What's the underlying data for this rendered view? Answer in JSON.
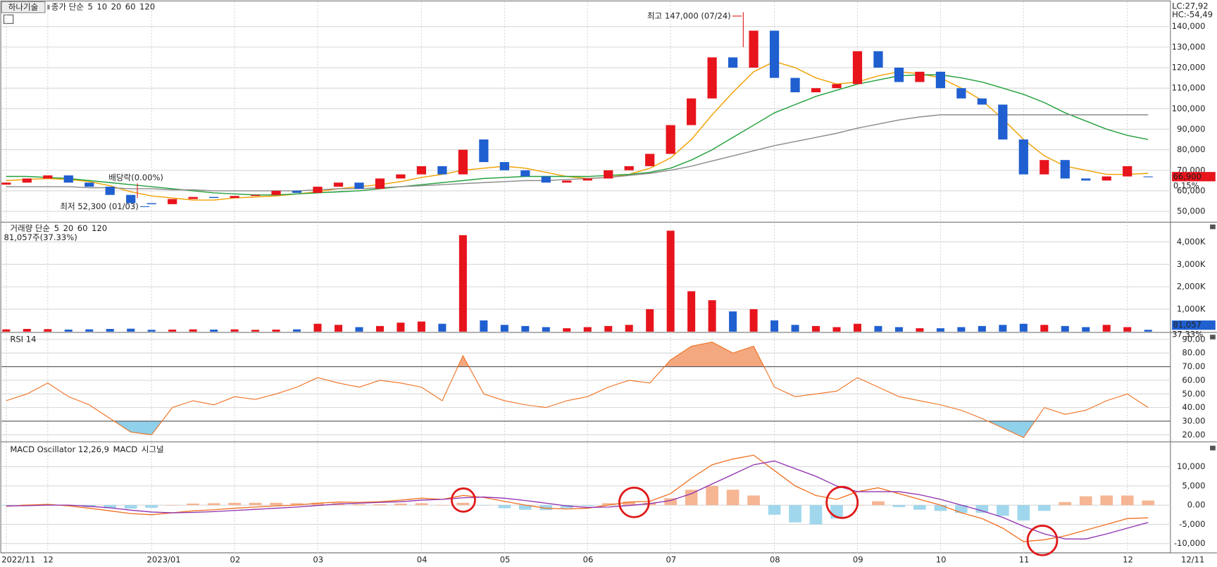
{
  "chart_data": [
    {
      "type": "candlestick",
      "title": "하나기술",
      "legend_prefix": "종가 단순",
      "ma_legend": [
        {
          "label": "5",
          "color": "#e040e0"
        },
        {
          "label": "10",
          "color": "#3050e0"
        }
      ],
      "categories": [
        "2022/11",
        null,
        "12",
        null,
        null,
        null,
        null,
        "2023/01",
        null,
        null,
        null,
        "02",
        null,
        null,
        null,
        "03",
        null,
        null,
        null,
        null,
        "04",
        null,
        null,
        null,
        "05",
        null,
        null,
        null,
        "06",
        null,
        null,
        null,
        "07",
        null,
        null,
        null,
        null,
        "08",
        null,
        null,
        null,
        "09",
        null,
        null,
        null,
        "10",
        null,
        null,
        null,
        "11",
        null,
        null,
        null,
        null,
        "12",
        null
      ],
      "end_label": "12/11",
      "open": [
        63000,
        64000,
        66000,
        67500,
        64000,
        62000,
        58000,
        54000,
        53500,
        56000,
        57000,
        56500,
        57500,
        58000,
        60000,
        59000,
        62000,
        64000,
        61000,
        66000,
        68000,
        72000,
        68000,
        85000,
        74000,
        70000,
        67000,
        64000,
        65000,
        66000,
        70000,
        72000,
        78000,
        92000,
        105000,
        125000,
        120000,
        138000,
        115000,
        108000,
        110000,
        112000,
        128000,
        120000,
        113000,
        118000,
        110000,
        105000,
        102000,
        85000,
        68000,
        75000,
        66000,
        65000,
        67000,
        67000
      ],
      "close": [
        64000,
        66000,
        67500,
        64000,
        62000,
        58000,
        54000,
        53500,
        56000,
        57000,
        56500,
        57500,
        58000,
        60000,
        59000,
        62000,
        64000,
        61000,
        66000,
        68000,
        72000,
        68000,
        80000,
        74000,
        70000,
        67000,
        64000,
        65000,
        66000,
        70000,
        72000,
        78000,
        92000,
        105000,
        125000,
        120000,
        138000,
        115000,
        108000,
        110000,
        112000,
        128000,
        120000,
        113000,
        118000,
        110000,
        105000,
        102000,
        85000,
        68000,
        75000,
        66000,
        65000,
        67000,
        72000,
        66900
      ],
      "up_color": "#e8141c",
      "down_color": "#1f5fd0",
      "series": [
        {
          "name": "20",
          "color": "#f0a000",
          "values": [
            65000,
            65500,
            66000,
            65500,
            64500,
            62500,
            59500,
            57500,
            56500,
            55500,
            55500,
            56500,
            57000,
            57500,
            58500,
            59500,
            61000,
            62000,
            63000,
            64500,
            66500,
            68000,
            70000,
            71000,
            72000,
            71000,
            69000,
            67000,
            66000,
            66500,
            68000,
            71000,
            76000,
            85000,
            97000,
            108000,
            118000,
            123000,
            120000,
            115000,
            112000,
            113000,
            116000,
            118000,
            117000,
            115000,
            110000,
            104000,
            95000,
            85000,
            77000,
            72000,
            70000,
            68000,
            68000,
            68500
          ]
        },
        {
          "name": "60",
          "color": "#22a03a",
          "values": [
            67000,
            67000,
            66500,
            66000,
            65000,
            64000,
            63000,
            62000,
            61000,
            60000,
            59000,
            58500,
            58000,
            58000,
            58500,
            59000,
            59500,
            60000,
            61000,
            62000,
            63000,
            64000,
            65000,
            66000,
            66500,
            67000,
            67000,
            67000,
            67000,
            67500,
            68000,
            69000,
            71000,
            75000,
            80000,
            86000,
            92000,
            98000,
            102000,
            106000,
            109000,
            112000,
            114000,
            116000,
            116500,
            116500,
            115000,
            113000,
            110000,
            107000,
            103000,
            98000,
            94000,
            90000,
            87000,
            85000
          ]
        },
        {
          "name": "120",
          "color": "#8c8c8c",
          "values": [
            62000,
            62000,
            62000,
            62000,
            61500,
            61500,
            61000,
            61000,
            60500,
            60500,
            60000,
            60000,
            60000,
            60000,
            60000,
            60500,
            61000,
            61000,
            61500,
            62000,
            62500,
            63000,
            63500,
            64000,
            64500,
            65000,
            65000,
            65500,
            66000,
            66500,
            67500,
            68500,
            70000,
            72000,
            74500,
            77000,
            79500,
            82000,
            84000,
            86000,
            88000,
            90500,
            92500,
            94500,
            96000,
            97000,
            97000,
            97000,
            97000,
            97000,
            97000,
            97000,
            97000,
            97000,
            97000,
            97000
          ]
        }
      ],
      "ylim": [
        45100,
        152100
      ],
      "yticks": [
        {
          "value": 50000,
          "label": "50,000"
        },
        {
          "value": 60000,
          "label": "60,000"
        },
        {
          "value": 70000,
          "label": "70,000"
        },
        {
          "value": 80000,
          "label": "80,000"
        },
        {
          "value": 90000,
          "label": "90,000"
        },
        {
          "value": 100000,
          "label": "100,000"
        },
        {
          "value": 110000,
          "label": "110,000"
        },
        {
          "value": 120000,
          "label": "120,000"
        },
        {
          "value": 130000,
          "label": "130,000"
        },
        {
          "value": 140000,
          "label": "140,000"
        }
      ],
      "corner_labels": [
        "LC:27,92",
        "HC:-54,49"
      ],
      "high": {
        "value": 147000,
        "label": "최고 147,000 (07/24)"
      },
      "low": {
        "value": 52300,
        "label": "최저 52,300 (01/03)"
      },
      "event_label": "배당락(0.00%)",
      "last_label": "66,900",
      "change_label": "0.15%"
    },
    {
      "type": "volume",
      "legend_prefix": "거래량 단순",
      "ma_legend": [
        {
          "label": "5",
          "color": "#e040e0"
        },
        {
          "label": "20",
          "color": "#f0a000"
        },
        {
          "label": "60",
          "color": "#22a03a"
        },
        {
          "label": "120",
          "color": "#8c8c8c"
        }
      ],
      "info": "81,057주(37.33%)",
      "values": [
        100000,
        120000,
        110000,
        90000,
        100000,
        120000,
        130000,
        80000,
        90000,
        100000,
        90000,
        100000,
        80000,
        90000,
        100000,
        350000,
        300000,
        200000,
        250000,
        400000,
        450000,
        350000,
        4300000,
        500000,
        300000,
        250000,
        200000,
        150000,
        200000,
        250000,
        300000,
        1000000,
        4500000,
        1800000,
        1400000,
        900000,
        1000000,
        500000,
        300000,
        250000,
        200000,
        350000,
        250000,
        200000,
        150000,
        150000,
        200000,
        250000,
        300000,
        350000,
        300000,
        250000,
        200000,
        300000,
        200000,
        81057
      ],
      "ylim": [
        0,
        4740000
      ],
      "yticks": [
        {
          "value": 1000000,
          "label": "1,000K"
        },
        {
          "value": 2000000,
          "label": "2,000K"
        },
        {
          "value": 3000000,
          "label": "3,000K"
        },
        {
          "value": 4000000,
          "label": "4,000K"
        }
      ],
      "last_label": "81,057",
      "change_label": "37.33%"
    },
    {
      "type": "rsi",
      "name": "RSI 14",
      "color": "#f07020",
      "values": [
        45,
        50,
        58,
        48,
        42,
        32,
        22,
        20,
        40,
        45,
        42,
        48,
        46,
        50,
        55,
        62,
        58,
        55,
        60,
        58,
        55,
        45,
        78,
        50,
        45,
        42,
        40,
        45,
        48,
        55,
        60,
        58,
        75,
        85,
        88,
        80,
        85,
        55,
        48,
        50,
        52,
        62,
        55,
        48,
        45,
        42,
        38,
        32,
        25,
        18,
        40,
        35,
        38,
        45,
        50,
        40
      ],
      "levels": [
        70,
        30
      ],
      "over_color": "#f4a880",
      "under_color": "#8fd0ea",
      "ylim": [
        15.4,
        94
      ],
      "yticks": [
        {
          "value": 20,
          "label": "20.00"
        },
        {
          "value": 30,
          "label": "30.00"
        },
        {
          "value": 40,
          "label": "40.00"
        },
        {
          "value": 50,
          "label": "50.00"
        },
        {
          "value": 60,
          "label": "60.00"
        },
        {
          "value": 70,
          "label": "70.00"
        },
        {
          "value": 80,
          "label": "80.00"
        },
        {
          "value": 90,
          "label": "90.00"
        }
      ]
    },
    {
      "type": "macd",
      "oscillator_name": "MACD Oscillator 12,26,9",
      "pos_color": "#f4a880",
      "neg_color": "#8fd0ea",
      "oscillator": [
        -100,
        150,
        200,
        -200,
        -500,
        -800,
        -900,
        -700,
        0,
        400,
        500,
        600,
        600,
        600,
        500,
        600,
        500,
        200,
        200,
        400,
        500,
        0,
        600,
        -100,
        -800,
        -1200,
        -1300,
        -800,
        -200,
        500,
        900,
        600,
        1800,
        4000,
        5000,
        4000,
        2500,
        -2500,
        -4500,
        -5000,
        -3500,
        0,
        1000,
        -500,
        -1200,
        -1500,
        -2000,
        -2000,
        -2800,
        -4000,
        -1500,
        800,
        2300,
        2500,
        2500,
        1200
      ],
      "series": [
        {
          "name": "MACD",
          "color": "#f07020",
          "values": [
            -300,
            0,
            200,
            -200,
            -800,
            -1500,
            -2200,
            -2500,
            -2000,
            -1500,
            -1200,
            -800,
            -500,
            -200,
            0,
            500,
            800,
            700,
            900,
            1300,
            1800,
            1500,
            2500,
            2000,
            1000,
            0,
            -800,
            -1000,
            -800,
            0,
            800,
            1000,
            3000,
            7000,
            10500,
            12000,
            13000,
            9000,
            5000,
            2500,
            1500,
            3500,
            4500,
            3000,
            1500,
            0,
            -2000,
            -3500,
            -6000,
            -9500,
            -9000,
            -8000,
            -6500,
            -5000,
            -3500,
            -3300
          ]
        },
        {
          "name": "시그널",
          "color": "#9030b0",
          "values": [
            -200,
            -150,
            0,
            0,
            -300,
            -700,
            -1300,
            -1800,
            -2000,
            -1900,
            -1700,
            -1400,
            -1100,
            -800,
            -500,
            -100,
            300,
            500,
            700,
            900,
            1300,
            1500,
            1900,
            2100,
            1800,
            1200,
            500,
            -200,
            -600,
            -500,
            -100,
            400,
            1200,
            3000,
            5500,
            8000,
            10500,
            11500,
            9500,
            7500,
            5000,
            3500,
            3500,
            3500,
            2700,
            1500,
            0,
            -1500,
            -3200,
            -5500,
            -7500,
            -8800,
            -8800,
            -7500,
            -6000,
            -4500
          ]
        }
      ],
      "ylim": [
        -12420,
        15860
      ],
      "yticks": [
        {
          "value": -10000,
          "label": "-10,000"
        },
        {
          "value": -5000,
          "label": "-5,000"
        },
        {
          "value": 0,
          "label": "0.00"
        },
        {
          "value": 5000,
          "label": "5,000"
        },
        {
          "value": 10000,
          "label": "10,000"
        }
      ]
    }
  ]
}
